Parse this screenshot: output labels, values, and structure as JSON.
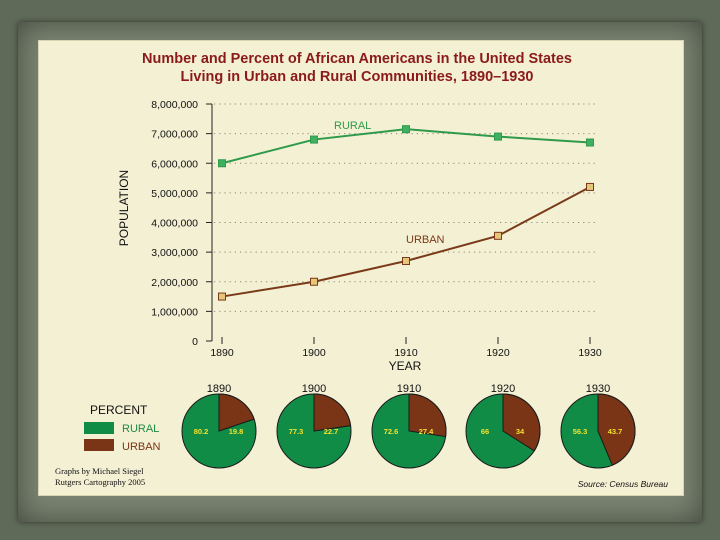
{
  "chart_data": [
    {
      "type": "line",
      "title": "Number and Percent of African Americans in the United States",
      "subtitle": "Living in Urban and Rural Communities, 1890–1930",
      "xlabel": "YEAR",
      "ylabel": "POPULATION",
      "x": [
        1890,
        1900,
        1910,
        1920,
        1930
      ],
      "ylim": [
        0,
        8000000
      ],
      "yticks": [
        "0",
        "1,000,000",
        "2,000,000",
        "3,000,000",
        "4,000,000",
        "5,000,000",
        "6,000,000",
        "7,000,000",
        "8,000,000"
      ],
      "grid": true,
      "series": [
        {
          "name": "RURAL",
          "color": "#2e9a4a",
          "marker_color": "#3fb060",
          "values": [
            6000000,
            6800000,
            7150000,
            6900000,
            6700000
          ]
        },
        {
          "name": "URBAN",
          "color": "#7a3a18",
          "marker_color": "#e6c67a",
          "values": [
            1500000,
            2000000,
            2700000,
            3550000,
            5200000
          ]
        }
      ]
    },
    {
      "type": "pie",
      "legend_title": "PERCENT",
      "legend": [
        {
          "label": "RURAL",
          "color": "#118c46",
          "text_color": "#1f8a46"
        },
        {
          "label": "URBAN",
          "color": "#7a3416",
          "text_color": "#7a3416"
        }
      ],
      "pies": [
        {
          "year": "1890",
          "rural": 80.2,
          "urban": 19.8,
          "rural_label": "80.2",
          "urban_label": "19.8"
        },
        {
          "year": "1900",
          "rural": 77.3,
          "urban": 22.7,
          "rural_label": "77.3",
          "urban_label": "22.7"
        },
        {
          "year": "1910",
          "rural": 72.6,
          "urban": 27.4,
          "rural_label": "72.6",
          "urban_label": "27.4"
        },
        {
          "year": "1920",
          "rural": 66,
          "urban": 34,
          "rural_label": "66",
          "urban_label": "34"
        },
        {
          "year": "1930",
          "rural": 56.3,
          "urban": 43.7,
          "rural_label": "56.3",
          "urban_label": "43.7"
        }
      ]
    }
  ],
  "credit": {
    "line1": "Graphs by Michael Siegel",
    "line2": "Rutgers Cartography 2005"
  },
  "source": "Source: Census Bureau"
}
